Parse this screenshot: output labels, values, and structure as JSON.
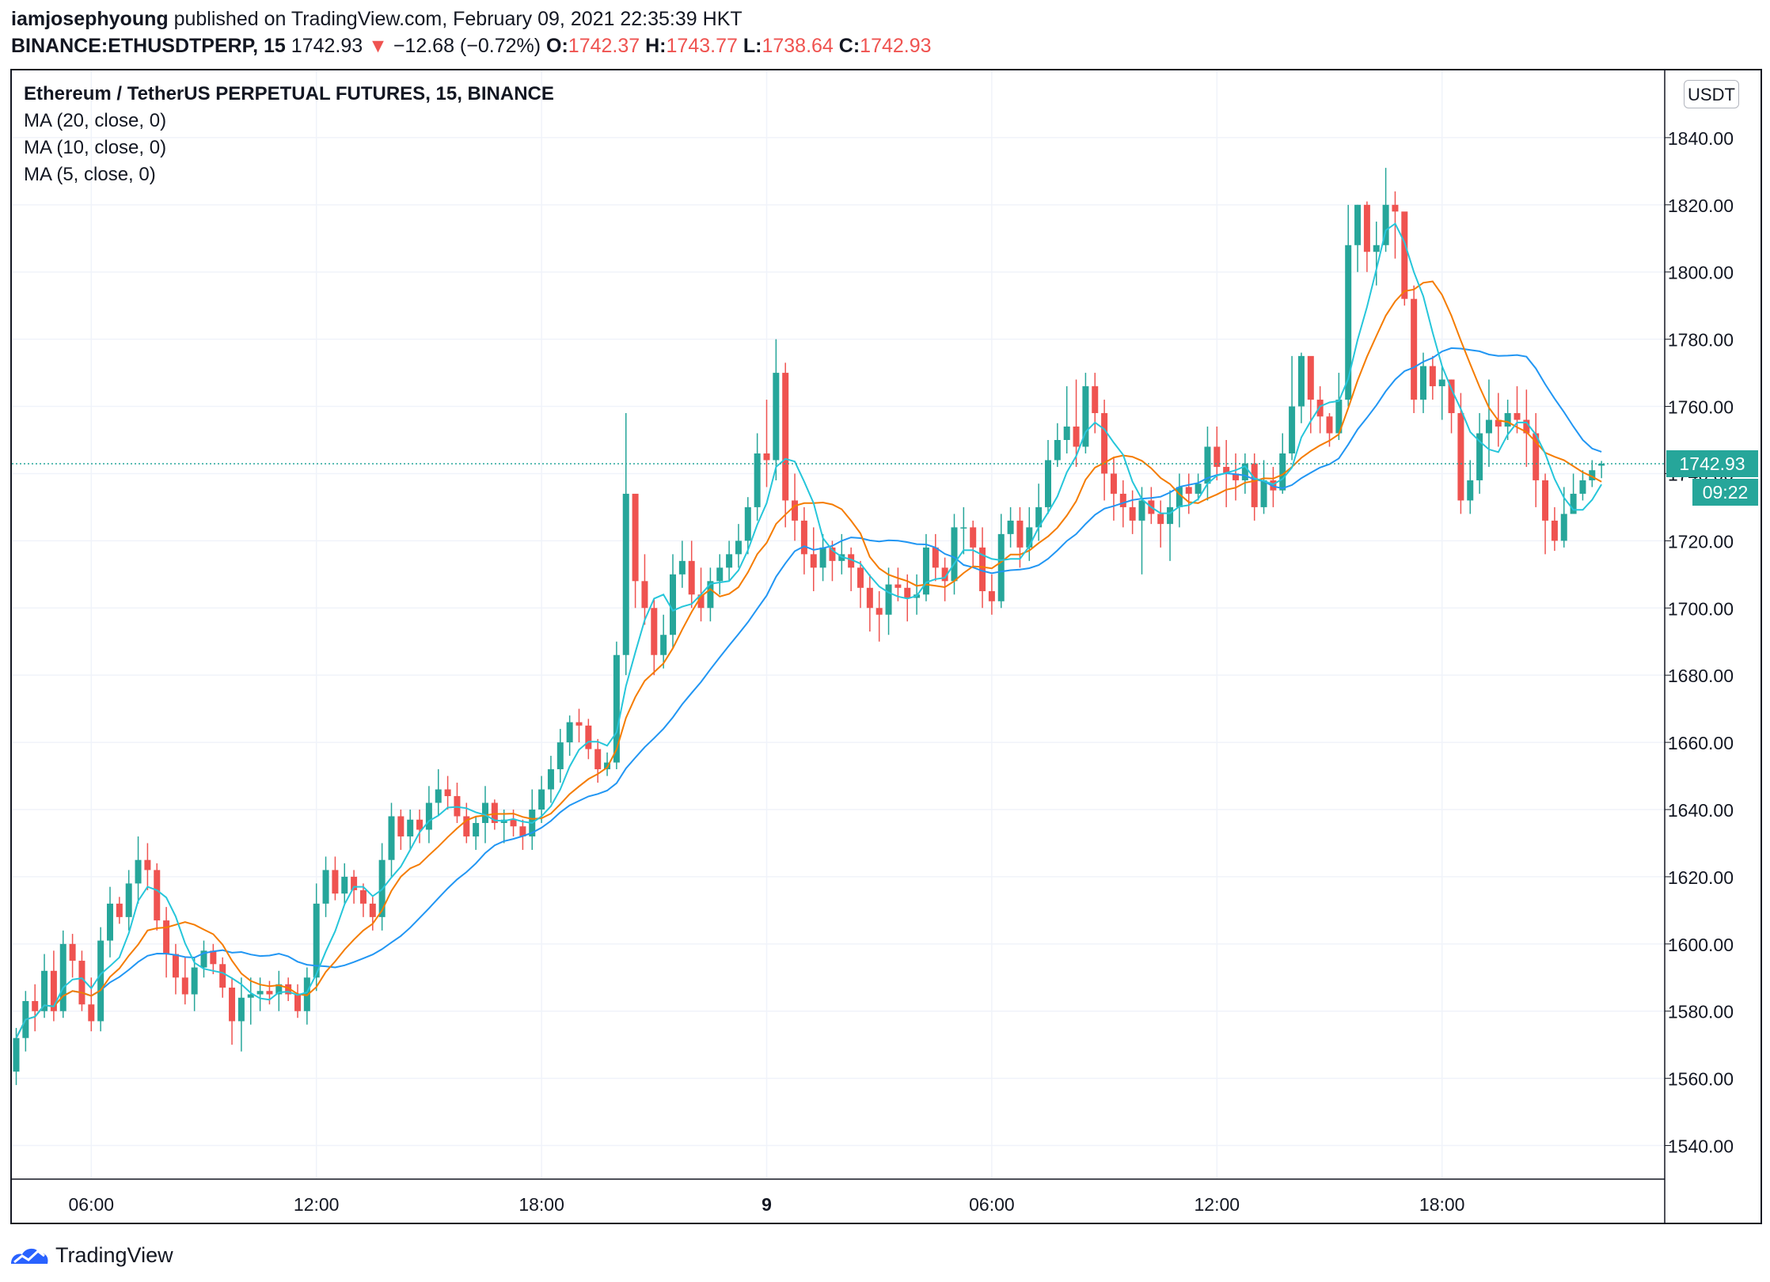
{
  "header": {
    "author": "iamjosephyoung",
    "published_text": "published on TradingView.com, February 09, 2021 22:35:39 HKT",
    "symbol": "BINANCE:ETHUSDTPERP, 15",
    "last": "1742.93",
    "change": "−12.68 (−0.72%)",
    "open_label": "O:",
    "open_value": "1742.37",
    "high_label": "H:",
    "high_value": "1743.77",
    "low_label": "L:",
    "low_value": "1738.64",
    "close_label": "C:",
    "close_value": "1742.93"
  },
  "legend": {
    "title": "Ethereum / TetherUS PERPETUAL FUTURES, 15, BINANCE",
    "ma20": "MA (20, close, 0)",
    "ma10": "MA (10, close, 0)",
    "ma5": "MA (5, close, 0)"
  },
  "price_scale": {
    "currency": "USDT",
    "last_price_label": "1742.93",
    "countdown": "09:22"
  },
  "footer": {
    "brand": "TradingView"
  },
  "colors": {
    "up": "#26a69a",
    "down": "#ef5350",
    "ma20": "#2196f3",
    "ma10": "#f57c00",
    "ma5": "#26c6da",
    "grid": "#f0f3fa",
    "last_line": "#26a69a"
  },
  "chart_data": {
    "type": "candlestick",
    "interval_minutes": 15,
    "first_bar_time": "2021-02-08T04:00",
    "y_ticks": [
      1540,
      1560,
      1580,
      1600,
      1620,
      1640,
      1660,
      1680,
      1700,
      1720,
      1740,
      1760,
      1780,
      1800,
      1820,
      1840
    ],
    "ylim": [
      1530,
      1860
    ],
    "x_ticks": [
      {
        "label": "06:00",
        "bar": 8,
        "bold": false
      },
      {
        "label": "12:00",
        "bar": 32,
        "bold": false
      },
      {
        "label": "18:00",
        "bar": 56,
        "bold": false
      },
      {
        "label": "9",
        "bar": 80,
        "bold": true
      },
      {
        "label": "06:00",
        "bar": 104,
        "bold": false
      },
      {
        "label": "12:00",
        "bar": 128,
        "bold": false
      },
      {
        "label": "18:00",
        "bar": 152,
        "bold": false
      }
    ],
    "last_price": 1742.93,
    "closes": [
      1572,
      1583,
      1580,
      1592,
      1580,
      1600,
      1595,
      1582,
      1577,
      1601,
      1612,
      1608,
      1618,
      1625,
      1622,
      1607,
      1597,
      1590,
      1585,
      1593,
      1598,
      1594,
      1587,
      1577,
      1584,
      1585,
      1586,
      1585,
      1588,
      1585,
      1580,
      1590,
      1612,
      1622,
      1615,
      1620,
      1616,
      1612,
      1608,
      1625,
      1638,
      1632,
      1637,
      1634,
      1642,
      1646,
      1644,
      1638,
      1632,
      1636,
      1642,
      1636,
      1637,
      1635,
      1632,
      1640,
      1646,
      1652,
      1660,
      1666,
      1665,
      1658,
      1652,
      1654,
      1686,
      1734,
      1708,
      1700,
      1686,
      1692,
      1710,
      1714,
      1704,
      1700,
      1708,
      1712,
      1716,
      1720,
      1730,
      1746,
      1744,
      1770,
      1732,
      1726,
      1716,
      1712,
      1718,
      1714,
      1716,
      1712,
      1706,
      1700,
      1698,
      1707,
      1706,
      1703,
      1704,
      1718,
      1712,
      1708,
      1724,
      1724,
      1718,
      1705,
      1702,
      1722,
      1726,
      1718,
      1724,
      1730,
      1744,
      1750,
      1754,
      1748,
      1766,
      1758,
      1740,
      1734,
      1730,
      1726,
      1732,
      1728,
      1725,
      1730,
      1736,
      1734,
      1737,
      1748,
      1742,
      1740,
      1738,
      1743,
      1730,
      1738,
      1735,
      1746,
      1760,
      1775,
      1762,
      1757,
      1752,
      1762,
      1808,
      1820,
      1806,
      1808,
      1820,
      1818,
      1792,
      1762,
      1772,
      1766,
      1768,
      1758,
      1732,
      1738,
      1752,
      1756,
      1754,
      1758,
      1756,
      1752,
      1738,
      1726,
      1720,
      1728,
      1734,
      1738,
      1741,
      1742.93
    ],
    "opens": [
      1562,
      1572,
      1583,
      1580,
      1592,
      1580,
      1600,
      1595,
      1582,
      1577,
      1601,
      1612,
      1608,
      1618,
      1625,
      1622,
      1607,
      1597,
      1590,
      1585,
      1593,
      1598,
      1594,
      1587,
      1577,
      1584,
      1585,
      1586,
      1585,
      1588,
      1585,
      1580,
      1590,
      1612,
      1622,
      1615,
      1620,
      1616,
      1612,
      1608,
      1625,
      1638,
      1632,
      1637,
      1634,
      1642,
      1646,
      1644,
      1638,
      1632,
      1636,
      1642,
      1636,
      1637,
      1635,
      1632,
      1640,
      1646,
      1652,
      1660,
      1666,
      1665,
      1658,
      1652,
      1654,
      1686,
      1734,
      1708,
      1700,
      1686,
      1692,
      1710,
      1714,
      1704,
      1700,
      1708,
      1712,
      1716,
      1720,
      1730,
      1746,
      1744,
      1770,
      1732,
      1726,
      1716,
      1712,
      1718,
      1714,
      1716,
      1712,
      1706,
      1700,
      1698,
      1707,
      1706,
      1703,
      1704,
      1718,
      1712,
      1708,
      1724,
      1724,
      1718,
      1705,
      1702,
      1722,
      1726,
      1718,
      1724,
      1730,
      1744,
      1750,
      1754,
      1748,
      1766,
      1758,
      1740,
      1734,
      1730,
      1726,
      1732,
      1728,
      1725,
      1730,
      1736,
      1734,
      1737,
      1748,
      1742,
      1740,
      1738,
      1743,
      1730,
      1738,
      1735,
      1746,
      1760,
      1775,
      1762,
      1757,
      1752,
      1762,
      1808,
      1820,
      1806,
      1808,
      1820,
      1818,
      1792,
      1762,
      1772,
      1766,
      1768,
      1758,
      1732,
      1738,
      1752,
      1756,
      1754,
      1758,
      1756,
      1752,
      1738,
      1726,
      1720,
      1728,
      1734,
      1738,
      1742.37
    ],
    "highs": [
      1575,
      1586,
      1588,
      1597,
      1598,
      1604,
      1603,
      1598,
      1590,
      1605,
      1617,
      1614,
      1622,
      1632,
      1630,
      1624,
      1611,
      1600,
      1596,
      1596,
      1601,
      1600,
      1596,
      1590,
      1590,
      1590,
      1590,
      1589,
      1592,
      1590,
      1588,
      1593,
      1618,
      1626,
      1626,
      1624,
      1622,
      1618,
      1614,
      1630,
      1642,
      1640,
      1640,
      1640,
      1647,
      1652,
      1650,
      1648,
      1642,
      1638,
      1647,
      1643,
      1640,
      1640,
      1637,
      1646,
      1650,
      1656,
      1664,
      1668,
      1670,
      1667,
      1661,
      1657,
      1690,
      1758,
      1730,
      1716,
      1703,
      1698,
      1716,
      1720,
      1720,
      1712,
      1712,
      1716,
      1720,
      1725,
      1733,
      1752,
      1762,
      1780,
      1773,
      1740,
      1730,
      1724,
      1722,
      1720,
      1722,
      1718,
      1714,
      1710,
      1705,
      1712,
      1712,
      1710,
      1710,
      1722,
      1722,
      1715,
      1728,
      1730,
      1726,
      1724,
      1710,
      1728,
      1730,
      1730,
      1730,
      1737,
      1750,
      1755,
      1766,
      1768,
      1770,
      1770,
      1762,
      1745,
      1738,
      1735,
      1736,
      1736,
      1732,
      1735,
      1740,
      1740,
      1740,
      1754,
      1754,
      1750,
      1746,
      1746,
      1746,
      1744,
      1742,
      1752,
      1775,
      1776,
      1768,
      1766,
      1758,
      1770,
      1820,
      1820,
      1821,
      1815,
      1831,
      1824,
      1816,
      1796,
      1776,
      1775,
      1772,
      1768,
      1764,
      1744,
      1758,
      1768,
      1764,
      1762,
      1766,
      1765,
      1758,
      1740,
      1730,
      1736,
      1740,
      1741,
      1744,
      1743.77
    ],
    "lows": [
      1558,
      1568,
      1574,
      1578,
      1577,
      1578,
      1590,
      1580,
      1574,
      1574,
      1596,
      1606,
      1604,
      1612,
      1616,
      1604,
      1590,
      1585,
      1582,
      1580,
      1590,
      1591,
      1584,
      1570,
      1568,
      1576,
      1580,
      1582,
      1580,
      1583,
      1578,
      1576,
      1586,
      1608,
      1613,
      1612,
      1612,
      1608,
      1604,
      1604,
      1620,
      1628,
      1628,
      1630,
      1630,
      1638,
      1640,
      1636,
      1630,
      1628,
      1630,
      1634,
      1630,
      1632,
      1628,
      1628,
      1636,
      1642,
      1648,
      1656,
      1660,
      1655,
      1648,
      1650,
      1652,
      1680,
      1700,
      1695,
      1680,
      1682,
      1688,
      1706,
      1700,
      1696,
      1696,
      1704,
      1708,
      1712,
      1716,
      1726,
      1736,
      1738,
      1724,
      1720,
      1710,
      1705,
      1708,
      1708,
      1710,
      1705,
      1700,
      1693,
      1690,
      1692,
      1702,
      1696,
      1698,
      1702,
      1708,
      1702,
      1704,
      1716,
      1712,
      1700,
      1698,
      1700,
      1718,
      1712,
      1714,
      1720,
      1728,
      1742,
      1746,
      1742,
      1746,
      1752,
      1732,
      1726,
      1724,
      1722,
      1710,
      1725,
      1718,
      1714,
      1724,
      1728,
      1732,
      1732,
      1738,
      1730,
      1732,
      1734,
      1726,
      1728,
      1730,
      1734,
      1744,
      1755,
      1752,
      1752,
      1748,
      1750,
      1760,
      1800,
      1800,
      1796,
      1806,
      1804,
      1790,
      1758,
      1758,
      1762,
      1756,
      1752,
      1728,
      1728,
      1734,
      1742,
      1748,
      1750,
      1752,
      1742,
      1730,
      1716,
      1717,
      1718,
      1730,
      1732,
      1736,
      1738.64
    ]
  }
}
